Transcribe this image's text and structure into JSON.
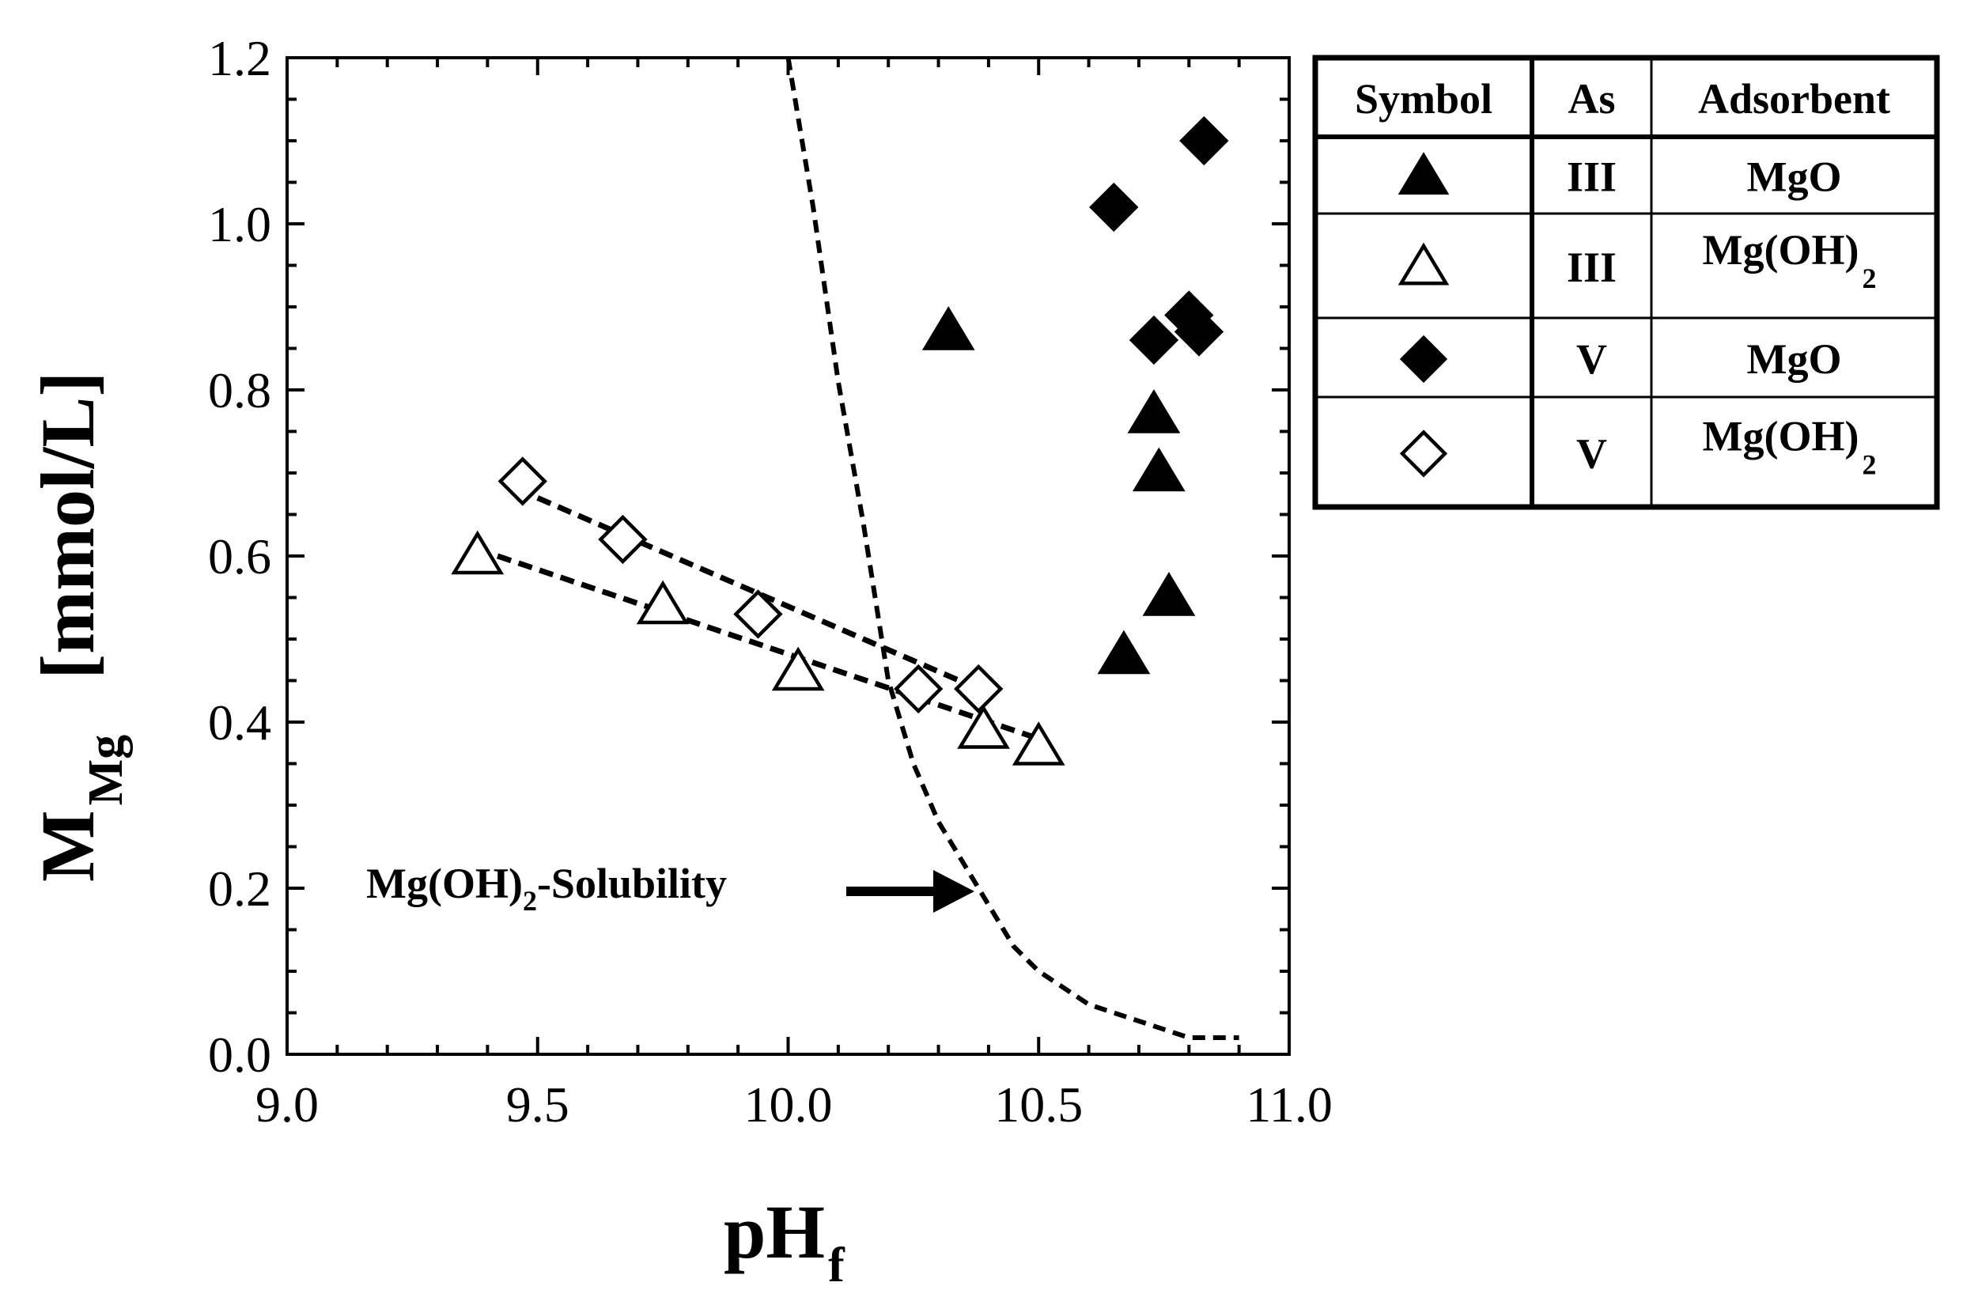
{
  "chart_data": {
    "type": "scatter",
    "xlabel": {
      "main": "pH",
      "sub": "f"
    },
    "ylabel": {
      "main": "M",
      "sub": "Mg",
      "unit": "[mmol/L]"
    },
    "xlim": [
      9.0,
      11.0
    ],
    "ylim": [
      0.0,
      1.2
    ],
    "xticks": [
      9.0,
      9.5,
      10.0,
      10.5,
      11.0
    ],
    "xtick_labels": [
      "9.0",
      "9.5",
      "10.0",
      "10.5",
      "11.0"
    ],
    "yticks": [
      0.0,
      0.2,
      0.4,
      0.6,
      0.8,
      1.0,
      1.2
    ],
    "ytick_labels": [
      "0.0",
      "0.2",
      "0.4",
      "0.6",
      "0.8",
      "1.0",
      "1.2"
    ],
    "grid": false,
    "series": [
      {
        "name": "As III MgO",
        "marker": "triangle-filled",
        "x": [
          10.32,
          10.73,
          10.74,
          10.76,
          10.67
        ],
        "y": [
          0.87,
          0.77,
          0.7,
          0.55,
          0.48
        ]
      },
      {
        "name": "As III Mg(OH)2",
        "marker": "triangle-open",
        "x": [
          9.38,
          9.75,
          10.02,
          10.39,
          10.5
        ],
        "y": [
          0.6,
          0.54,
          0.46,
          0.39,
          0.37
        ]
      },
      {
        "name": "As V MgO",
        "marker": "diamond-filled",
        "x": [
          10.65,
          10.73,
          10.8,
          10.82,
          10.83
        ],
        "y": [
          1.02,
          0.86,
          0.89,
          0.87,
          1.1
        ]
      },
      {
        "name": "As V Mg(OH)2",
        "marker": "diamond-open",
        "x": [
          9.47,
          9.67,
          9.94,
          10.26,
          10.38
        ],
        "y": [
          0.69,
          0.62,
          0.53,
          0.44,
          0.44
        ]
      }
    ],
    "fit_lines": [
      {
        "name": "Mg(OH)2 As III trend",
        "x": [
          9.42,
          10.5
        ],
        "y": [
          0.6,
          0.38
        ]
      },
      {
        "name": "Mg(OH)2 As V trend",
        "x": [
          9.5,
          10.38
        ],
        "y": [
          0.67,
          0.44
        ]
      }
    ],
    "solubility_curve": {
      "name": "Mg(OH)2-Solubility",
      "x": [
        10.0,
        10.05,
        10.1,
        10.15,
        10.2,
        10.25,
        10.3,
        10.35,
        10.4,
        10.45,
        10.5,
        10.6,
        10.7,
        10.8,
        10.9
      ],
      "y": [
        1.2,
        1.02,
        0.81,
        0.64,
        0.45,
        0.35,
        0.28,
        0.23,
        0.18,
        0.13,
        0.1,
        0.06,
        0.04,
        0.02,
        0.02
      ]
    },
    "annotation": {
      "text": "Mg(OH)",
      "sub": "2",
      "suffix": "-Solubility",
      "arrow_to": [
        10.38,
        0.2
      ]
    },
    "legend": {
      "placement": "outside-right-top",
      "headers": [
        "Symbol",
        "As",
        "Adsorbent"
      ],
      "rows": [
        {
          "marker": "triangle-filled",
          "as": "III",
          "adsorbent": "MgO",
          "sub": ""
        },
        {
          "marker": "triangle-open",
          "as": "III",
          "adsorbent": "Mg(OH)",
          "sub": "2"
        },
        {
          "marker": "diamond-filled",
          "as": "V",
          "adsorbent": "MgO",
          "sub": ""
        },
        {
          "marker": "diamond-open",
          "as": "V",
          "adsorbent": "Mg(OH)",
          "sub": "2"
        }
      ]
    }
  }
}
